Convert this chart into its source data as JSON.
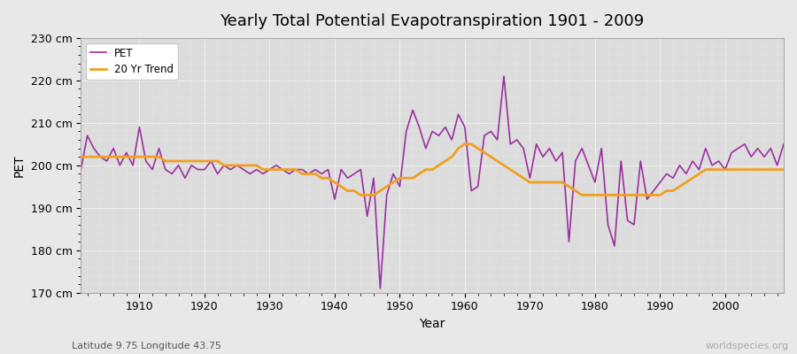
{
  "title": "Yearly Total Potential Evapotranspiration 1901 - 2009",
  "xlabel": "Year",
  "ylabel": "PET",
  "subtitle": "Latitude 9.75 Longitude 43.75",
  "watermark": "worldspecies.org",
  "ylim": [
    170,
    230
  ],
  "yticks": [
    170,
    180,
    190,
    200,
    210,
    220,
    230
  ],
  "ytick_labels": [
    "170 cm",
    "180 cm",
    "190 cm",
    "200 cm",
    "210 cm",
    "220 cm",
    "230 cm"
  ],
  "pet_color": "#9b30a0",
  "trend_color": "#f0a020",
  "background_color": "#e8e8e8",
  "plot_bg_color": "#e0e0e0",
  "years": [
    1901,
    1902,
    1903,
    1904,
    1905,
    1906,
    1907,
    1908,
    1909,
    1910,
    1911,
    1912,
    1913,
    1914,
    1915,
    1916,
    1917,
    1918,
    1919,
    1920,
    1921,
    1922,
    1923,
    1924,
    1925,
    1926,
    1927,
    1928,
    1929,
    1930,
    1931,
    1932,
    1933,
    1934,
    1935,
    1936,
    1937,
    1938,
    1939,
    1940,
    1941,
    1942,
    1943,
    1944,
    1945,
    1946,
    1947,
    1948,
    1949,
    1950,
    1951,
    1952,
    1953,
    1954,
    1955,
    1956,
    1957,
    1958,
    1959,
    1960,
    1961,
    1962,
    1963,
    1964,
    1965,
    1966,
    1967,
    1968,
    1969,
    1970,
    1971,
    1972,
    1973,
    1974,
    1975,
    1976,
    1977,
    1978,
    1979,
    1980,
    1981,
    1982,
    1983,
    1984,
    1985,
    1986,
    1987,
    1988,
    1989,
    1990,
    1991,
    1992,
    1993,
    1994,
    1995,
    1996,
    1997,
    1998,
    1999,
    2000,
    2001,
    2002,
    2003,
    2004,
    2005,
    2006,
    2007,
    2008,
    2009
  ],
  "pet_values": [
    199,
    207,
    204,
    202,
    201,
    204,
    200,
    203,
    200,
    209,
    201,
    199,
    204,
    199,
    198,
    200,
    197,
    200,
    199,
    199,
    201,
    198,
    200,
    199,
    200,
    199,
    198,
    199,
    198,
    199,
    200,
    199,
    198,
    199,
    199,
    198,
    199,
    198,
    199,
    192,
    199,
    197,
    198,
    199,
    188,
    197,
    171,
    193,
    198,
    195,
    208,
    213,
    209,
    204,
    208,
    207,
    209,
    206,
    212,
    209,
    194,
    195,
    207,
    208,
    206,
    221,
    205,
    206,
    204,
    197,
    205,
    202,
    204,
    201,
    203,
    182,
    201,
    204,
    200,
    196,
    204,
    186,
    181,
    201,
    187,
    186,
    201,
    192,
    194,
    196,
    198,
    197,
    200,
    198,
    201,
    199,
    204,
    200,
    201,
    199,
    203,
    204,
    205,
    202,
    204,
    202,
    204,
    200,
    205
  ],
  "trend_values": [
    202,
    202,
    202,
    202,
    202,
    202,
    202,
    202,
    202,
    202,
    202,
    202,
    202,
    201,
    201,
    201,
    201,
    201,
    201,
    201,
    201,
    201,
    200,
    200,
    200,
    200,
    200,
    200,
    199,
    199,
    199,
    199,
    199,
    199,
    198,
    198,
    198,
    197,
    197,
    196,
    195,
    194,
    194,
    193,
    193,
    193,
    194,
    195,
    196,
    197,
    197,
    197,
    198,
    199,
    199,
    200,
    201,
    202,
    204,
    205,
    205,
    204,
    203,
    202,
    201,
    200,
    199,
    198,
    197,
    196,
    196,
    196,
    196,
    196,
    196,
    195,
    194,
    193,
    193,
    193,
    193,
    193,
    193,
    193,
    193,
    193,
    193,
    193,
    193,
    193,
    194,
    194,
    195,
    196,
    197,
    198,
    199,
    199,
    199,
    199,
    199,
    199,
    199,
    199,
    199,
    199,
    199,
    199,
    199
  ]
}
